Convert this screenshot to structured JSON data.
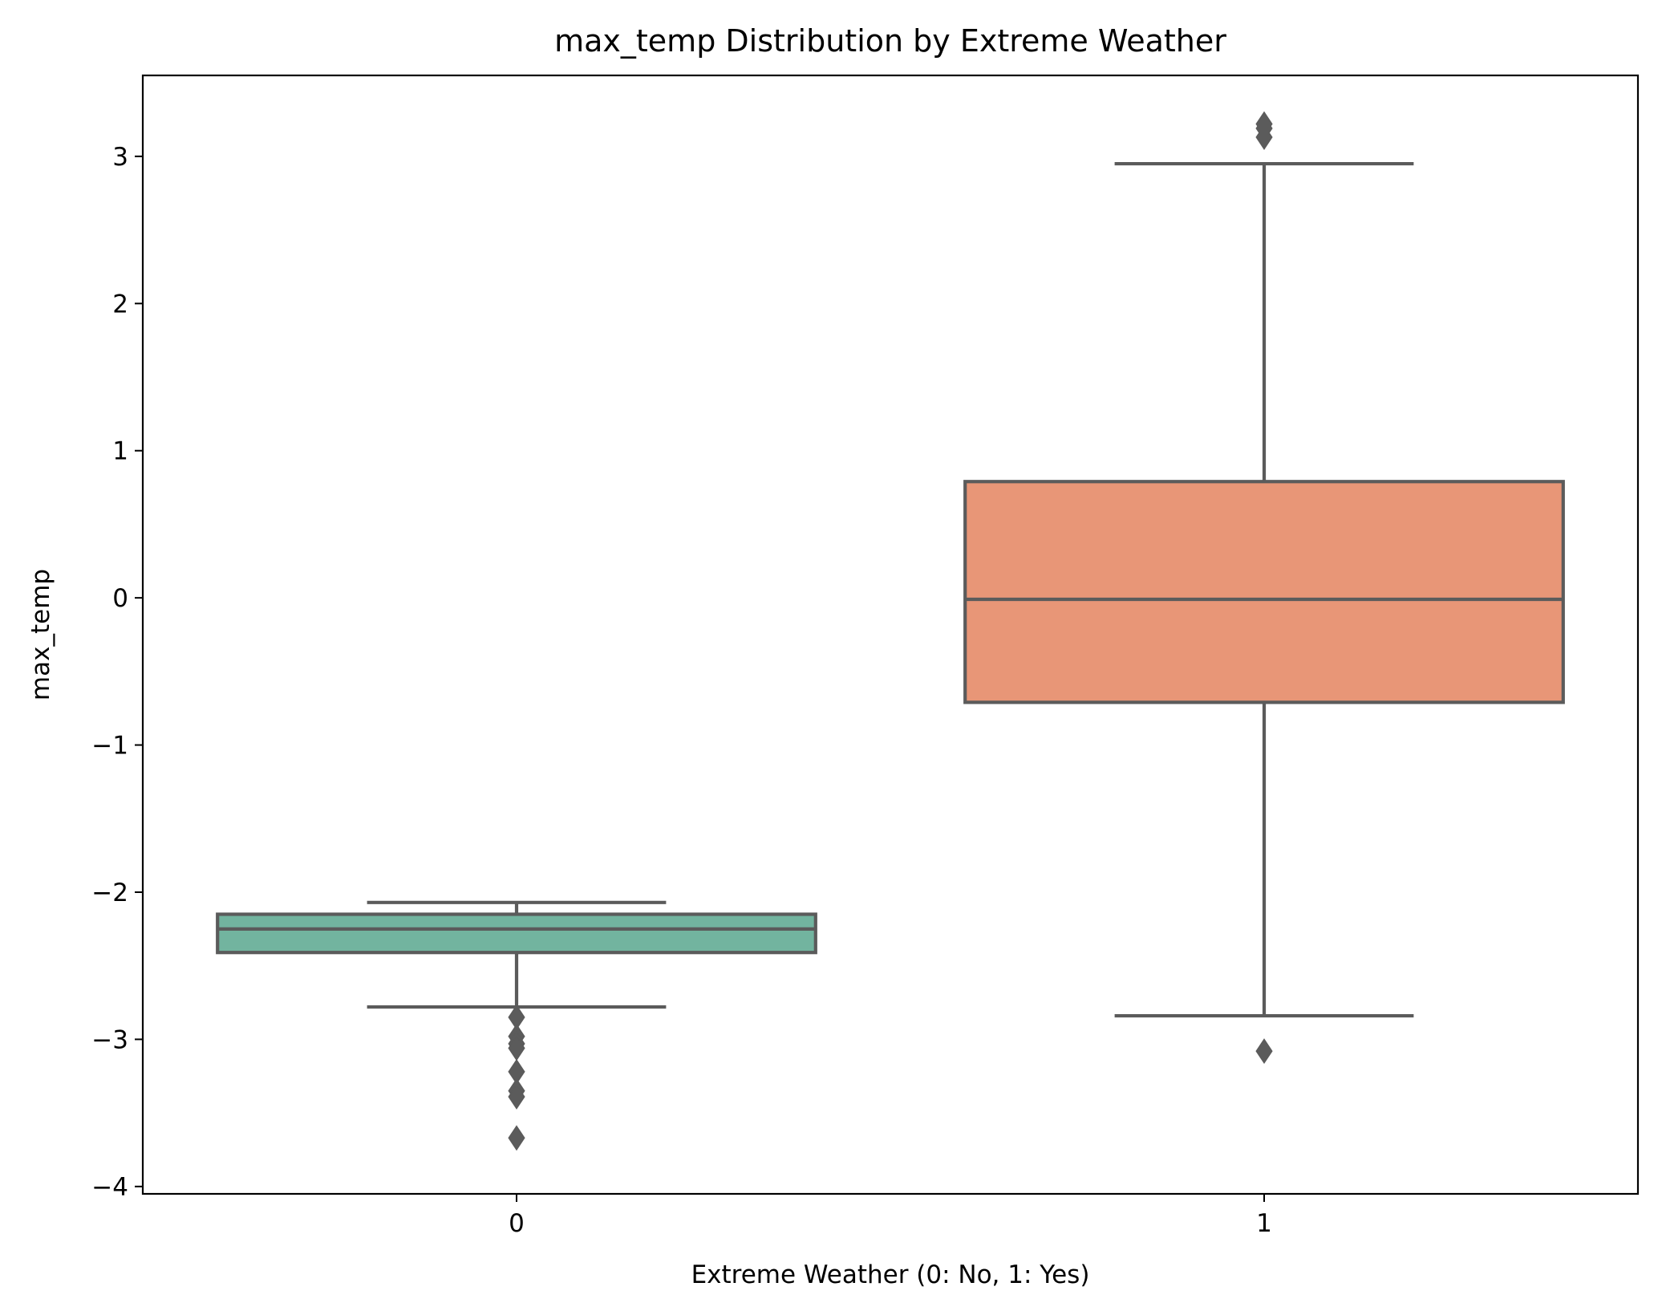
{
  "chart_data": {
    "type": "box",
    "title": "max_temp Distribution by Extreme Weather",
    "xlabel": "Extreme Weather (0: No, 1: Yes)",
    "ylabel": "max_temp",
    "ylim": [
      -4.05,
      3.55
    ],
    "yticks": [
      -4,
      -3,
      -2,
      -1,
      0,
      1,
      2,
      3
    ],
    "ytick_labels": [
      "−4",
      "−3",
      "−2",
      "−1",
      "0",
      "1",
      "2",
      "3"
    ],
    "categories": [
      "0",
      "1"
    ],
    "grid": false,
    "boxes": [
      {
        "category": "0",
        "color": "#72b49f",
        "whisker_low": -2.78,
        "q1": -2.41,
        "median": -2.25,
        "q3": -2.15,
        "whisker_high": -2.07,
        "outliers": [
          -2.85,
          -2.98,
          -3.03,
          -3.06,
          -3.22,
          -3.35,
          -3.39,
          -3.67
        ]
      },
      {
        "category": "1",
        "color": "#e89677",
        "whisker_low": -2.84,
        "q1": -0.71,
        "median": -0.01,
        "q3": 0.79,
        "whisker_high": 2.95,
        "outliers": [
          3.13,
          3.19,
          3.22,
          -3.08
        ]
      }
    ],
    "line_color": "#5b5b5b"
  }
}
